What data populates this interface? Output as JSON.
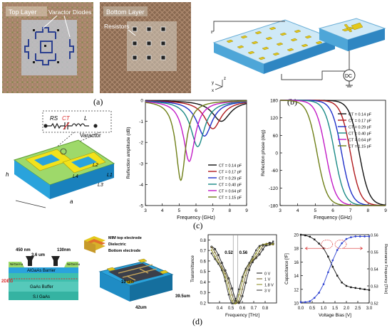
{
  "panel_labels": {
    "a": "(a)",
    "b": "(b)",
    "c": "(c)",
    "d": "(d)"
  },
  "panel_a": {
    "top_layer_label": "Top Layer",
    "bottom_layer_label": "Bottom Layer",
    "varactor_label": "Varactor Diodes",
    "resistors_label": "Resistors"
  },
  "panel_b": {
    "dc_label": "DC",
    "axis_x": "x",
    "axis_y": "y",
    "axis_z": "z"
  },
  "panel_c": {
    "circuit": {
      "rs": "RS",
      "ct": "CT",
      "l": "L",
      "varactor": "Varactor"
    },
    "unit_cell": {
      "h": "h",
      "a": "a",
      "l1": "L1",
      "l2": "L2",
      "l3": "L3",
      "l4": "L4"
    }
  },
  "panel_d": {
    "hemt": {
      "dim_450": "450 nm",
      "dim_36": "3.6 um",
      "dim_130": "130nm",
      "ni_ge_left": "Ni/Ge/Au",
      "ni_ge_right": "Ni/Ge/Au",
      "barrier": "AlGaAs Barrier",
      "buffer": "GaAs Buffer",
      "substrate": "S.I GaAs",
      "twodeg": "2DEG"
    },
    "mim": {
      "top": "MIM top electrode",
      "dielectric": "Dielectric",
      "bottom": "Bottom electrode"
    },
    "device": {
      "dim_10": "10 um",
      "dim_42": "42um",
      "dim_395": "39.5um"
    }
  },
  "chart_data": [
    {
      "id": "reflection-amplitude",
      "type": "line",
      "xlabel": "Frequency (GHz)",
      "ylabel": "Reflection amplitude (dB)",
      "xlim": [
        3,
        9
      ],
      "ylim": [
        -5,
        0
      ],
      "xticks": [
        "3",
        "4",
        "5",
        "6",
        "7",
        "8",
        "9"
      ],
      "yticks": [
        "0",
        "-1",
        "-2",
        "-3",
        "-4",
        "-5"
      ],
      "grid": false,
      "legend_position": "bottom-right",
      "series": [
        {
          "name": "CT = 0.14 pF",
          "color": "#111111",
          "dip_f": 7.5,
          "dip_db": -1.0,
          "width": 0.65
        },
        {
          "name": "CT = 0.17 pF",
          "color": "#b0191d",
          "dip_f": 7.0,
          "dip_db": -1.35,
          "width": 0.6
        },
        {
          "name": "CT = 0.29 pF",
          "color": "#1f2fc9",
          "dip_f": 6.5,
          "dip_db": -1.7,
          "width": 0.55
        },
        {
          "name": "CT = 0.40 pF",
          "color": "#1a8a86",
          "dip_f": 6.1,
          "dip_db": -2.2,
          "width": 0.5
        },
        {
          "name": "CT = 0.64 pF",
          "color": "#c21bc6",
          "dip_f": 5.6,
          "dip_db": -2.9,
          "width": 0.42
        },
        {
          "name": "CT = 1.15 pF",
          "color": "#6e7f17",
          "dip_f": 5.1,
          "dip_db": -3.8,
          "width": 0.35
        }
      ]
    },
    {
      "id": "reflection-phase",
      "type": "line",
      "xlabel": "Frequency (GHz)",
      "ylabel": "Reflection phase (deg)",
      "xlim": [
        3,
        9
      ],
      "ylim": [
        -180,
        180
      ],
      "xticks": [
        "3",
        "4",
        "5",
        "6",
        "7",
        "8",
        "9"
      ],
      "yticks": [
        "180",
        "120",
        "60",
        "0",
        "-60",
        "-120",
        "-180"
      ],
      "grid": false,
      "legend_position": "top-right",
      "series": [
        {
          "name": "CT = 0.14 pF",
          "color": "#111111",
          "res_f": 7.5
        },
        {
          "name": "CT = 0.17 pF",
          "color": "#b0191d",
          "res_f": 7.0
        },
        {
          "name": "CT = 0.29 pF",
          "color": "#1f2fc9",
          "res_f": 6.5
        },
        {
          "name": "CT = 0.40 pF",
          "color": "#1a8a86",
          "res_f": 6.1
        },
        {
          "name": "CT = 0.64 pF",
          "color": "#c21bc6",
          "res_f": 5.6
        },
        {
          "name": "CT = 1.15 pF",
          "color": "#6e7f17",
          "res_f": 5.1
        }
      ]
    },
    {
      "id": "transmittance",
      "type": "line",
      "xlabel": "Frequency [THz]",
      "ylabel": "Transmittance",
      "xlim": [
        0.3,
        0.9
      ],
      "ylim": [
        0.2,
        0.85
      ],
      "xticks": [
        "0.4",
        "0.5",
        "0.6",
        "0.7",
        "0.8"
      ],
      "yticks": [
        "0.8",
        "0.7",
        "0.6",
        "0.5",
        "0.4",
        "0.3",
        "0.2"
      ],
      "annotations": [
        "0.52",
        "0.56"
      ],
      "legend_position": "bottom-right",
      "series": [
        {
          "name": "0 V",
          "color": "#111111",
          "marker": "circle",
          "dip": 0.56
        },
        {
          "name": "1 V",
          "color": "#6b5b1e",
          "marker": "triangle",
          "dip": 0.545
        },
        {
          "name": "1.8 V",
          "color": "#8a8a1a",
          "marker": "diamond",
          "dip": 0.53
        },
        {
          "name": "3 V",
          "color": "#333333",
          "marker": "square",
          "dip": 0.52
        }
      ]
    },
    {
      "id": "capacitance-resonance",
      "type": "line",
      "xlabel": "Voltage Bias [V]",
      "ylabel": "Capacitance [fF]",
      "y2label": "Resonance Frequency [THz]",
      "xlim": [
        0,
        3
      ],
      "ylim": [
        10,
        20
      ],
      "y2lim": [
        0.52,
        0.56
      ],
      "xticks": [
        "0.0",
        "0.5",
        "1.0",
        "1.5",
        "2.0",
        "2.5",
        "3.0"
      ],
      "yticks": [
        "20",
        "18",
        "16",
        "14",
        "12",
        "10"
      ],
      "y2ticks": [
        "0.56",
        "0.55",
        "0.54",
        "0.53",
        "0.52"
      ],
      "series": [
        {
          "name": "Capacitance",
          "color": "#111111",
          "x": [
            0,
            0.2,
            0.4,
            0.6,
            0.8,
            1.0,
            1.2,
            1.4,
            1.6,
            1.8,
            2.0,
            2.2,
            2.4,
            2.6,
            2.8,
            3.0
          ],
          "y": [
            20,
            19.9,
            19.7,
            19.3,
            18.7,
            18.0,
            16.8,
            15.3,
            14.0,
            13.0,
            12.5,
            12.3,
            12.2,
            12.1,
            12.0,
            11.9
          ]
        },
        {
          "name": "Resonance Frequency",
          "color": "#2a3fd1",
          "axis": "right",
          "x": [
            0,
            0.2,
            0.4,
            0.6,
            0.8,
            1.0,
            1.2,
            1.4,
            1.6,
            1.8,
            2.0,
            2.2,
            2.4,
            2.6,
            2.8,
            3.0
          ],
          "y": [
            0.5205,
            0.5205,
            0.521,
            0.523,
            0.526,
            0.531,
            0.538,
            0.545,
            0.551,
            0.555,
            0.5575,
            0.5585,
            0.559,
            0.559,
            0.559,
            0.559
          ]
        }
      ]
    }
  ]
}
